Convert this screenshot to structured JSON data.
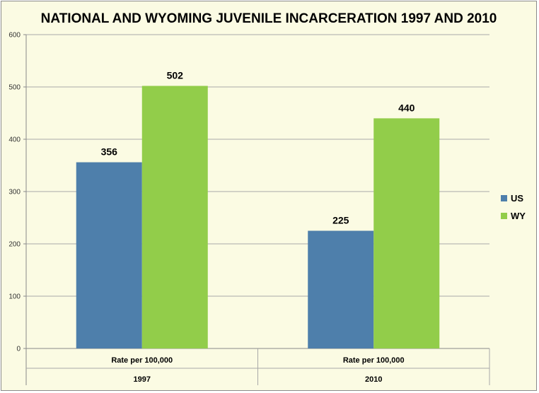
{
  "chart_data": {
    "type": "bar",
    "title": "NATIONAL AND WYOMING JUVENILE INCARCERATION 1997 AND 2010",
    "xlabel": "",
    "ylabel": "",
    "ylim": [
      0,
      600
    ],
    "yticks": [
      0,
      100,
      200,
      300,
      400,
      500,
      600
    ],
    "grid": true,
    "legend_position": "right",
    "categories": [
      {
        "measure": "Rate per 100,000",
        "year": "1997"
      },
      {
        "measure": "Rate per 100,000",
        "year": "2010"
      }
    ],
    "series": [
      {
        "name": "US",
        "color": "#4e7fab",
        "values": [
          356,
          225
        ]
      },
      {
        "name": "WY",
        "color": "#92cd4a",
        "values": [
          502,
          440
        ]
      }
    ]
  }
}
